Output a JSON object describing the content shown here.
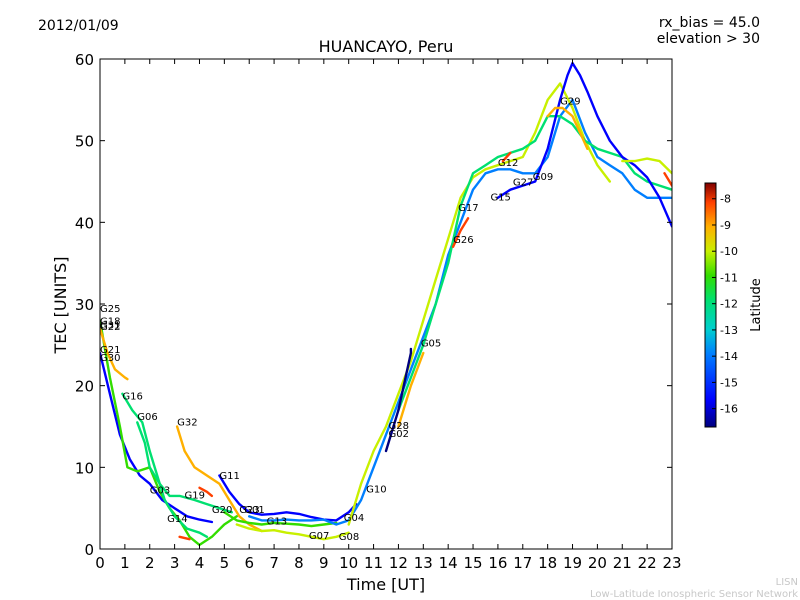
{
  "header": {
    "date": "2012/01/09",
    "rx_bias": "rx_bias = 45.0",
    "elevation": "elevation > 30"
  },
  "footer": {
    "line1": "LISN",
    "line2": "Low-Latitude Ionospheric Sensor Network"
  },
  "colors": {
    "ramp": [
      "#00007f",
      "#0000ff",
      "#007fff",
      "#00cfcf",
      "#00e070",
      "#33dd00",
      "#c8f000",
      "#ffb000",
      "#ff4000",
      "#cc0000"
    ]
  },
  "chart_data": {
    "type": "line",
    "title": "HUANCAYO, Peru",
    "xlabel": "Time [UT]",
    "ylabel": "TEC [UNITS]",
    "xlim": [
      0,
      23
    ],
    "ylim": [
      0,
      60
    ],
    "xticks": [
      0,
      1,
      2,
      3,
      4,
      5,
      6,
      7,
      8,
      9,
      10,
      11,
      12,
      13,
      14,
      15,
      16,
      17,
      18,
      19,
      20,
      21,
      22,
      23
    ],
    "yticks": [
      0,
      10,
      20,
      30,
      40,
      50,
      60
    ],
    "colorbar": {
      "label": "Latitude",
      "range": [
        -16.7,
        -7.4
      ],
      "ticks": [
        -16,
        -15,
        -14,
        -13,
        -12,
        -11,
        -10,
        -9,
        -8
      ]
    },
    "series": [
      {
        "lat": -15.5,
        "points": [
          [
            0,
            24
          ],
          [
            0.4,
            19
          ],
          [
            0.8,
            14
          ],
          [
            1.2,
            11
          ],
          [
            1.6,
            9
          ],
          [
            2.0,
            8
          ],
          [
            2.5,
            6
          ],
          [
            3.0,
            5
          ],
          [
            3.5,
            4
          ],
          [
            4.0,
            3.6
          ],
          [
            4.5,
            3.3
          ]
        ]
      },
      {
        "lat": -11.5,
        "points": [
          [
            0,
            28
          ],
          [
            0.4,
            21
          ],
          [
            0.8,
            15
          ],
          [
            1.1,
            10
          ],
          [
            1.5,
            9.5
          ],
          [
            2.0,
            10
          ],
          [
            2.4,
            7
          ],
          [
            2.8,
            5
          ],
          [
            3.2,
            3.5
          ],
          [
            3.6,
            1.5
          ],
          [
            4.0,
            0.5
          ],
          [
            4.5,
            1.5
          ],
          [
            5.0,
            3
          ],
          [
            5.5,
            4
          ]
        ]
      },
      {
        "lat": -9.5,
        "points": [
          [
            0,
            27
          ],
          [
            0.3,
            24
          ],
          [
            0.6,
            22
          ],
          [
            1.0,
            21
          ],
          [
            1.1,
            20.8
          ]
        ]
      },
      {
        "lat": -13.0,
        "points": [
          [
            0.9,
            19
          ],
          [
            1.3,
            17
          ],
          [
            1.7,
            15.5
          ],
          [
            2.0,
            12
          ],
          [
            2.3,
            9
          ],
          [
            2.6,
            6
          ],
          [
            3.0,
            4
          ],
          [
            3.5,
            2.5
          ],
          [
            4.0,
            2
          ],
          [
            4.3,
            1.5
          ]
        ]
      },
      {
        "lat": -12.5,
        "points": [
          [
            1.5,
            15.5
          ],
          [
            1.8,
            13
          ],
          [
            2.0,
            10
          ],
          [
            2.4,
            8
          ],
          [
            2.8,
            6.5
          ],
          [
            3.2,
            6.5
          ],
          [
            3.8,
            6
          ],
          [
            4.3,
            5.5
          ],
          [
            4.8,
            5
          ],
          [
            5.3,
            4.5
          ]
        ]
      },
      {
        "lat": -9.0,
        "points": [
          [
            3.1,
            15
          ],
          [
            3.4,
            12
          ],
          [
            3.8,
            10
          ],
          [
            4.3,
            9
          ],
          [
            4.8,
            8
          ],
          [
            5.2,
            6
          ],
          [
            5.6,
            4
          ],
          [
            6.0,
            3
          ],
          [
            6.5,
            2.2
          ]
        ]
      },
      {
        "lat": -16.0,
        "points": [
          [
            4.8,
            9
          ],
          [
            5.2,
            7
          ],
          [
            5.6,
            5.5
          ],
          [
            6.0,
            4.5
          ],
          [
            6.5,
            4.2
          ],
          [
            7.0,
            4.3
          ],
          [
            7.5,
            4.5
          ],
          [
            8.0,
            4.3
          ],
          [
            8.5,
            3.9
          ],
          [
            9.0,
            3.6
          ],
          [
            9.5,
            3.5
          ],
          [
            10.0,
            4.5
          ],
          [
            10.3,
            5.5
          ]
        ]
      },
      {
        "lat": -12.0,
        "points": [
          [
            5.0,
            4.5
          ],
          [
            5.5,
            3.5
          ],
          [
            6.0,
            3.2
          ],
          [
            6.5,
            3.0
          ],
          [
            7.0,
            3.2
          ],
          [
            7.5,
            3.1
          ],
          [
            8.0,
            3.0
          ],
          [
            8.5,
            2.8
          ],
          [
            9.0,
            3.0
          ],
          [
            9.5,
            3.2
          ]
        ]
      },
      {
        "lat": -10.5,
        "points": [
          [
            5.5,
            3.0
          ],
          [
            6.0,
            2.5
          ],
          [
            6.5,
            2.2
          ],
          [
            7.0,
            2.3
          ],
          [
            7.5,
            2.0
          ],
          [
            8.0,
            1.8
          ],
          [
            8.5,
            1.5
          ],
          [
            9.0,
            1.2
          ],
          [
            9.5,
            1.5
          ],
          [
            10.0,
            2.0
          ]
        ]
      },
      {
        "lat": -15.0,
        "points": [
          [
            6.0,
            4.0
          ],
          [
            6.5,
            3.5
          ],
          [
            7.0,
            3.5
          ],
          [
            7.5,
            3.6
          ],
          [
            8.0,
            3.5
          ],
          [
            8.5,
            3.5
          ],
          [
            9.0,
            3.6
          ],
          [
            9.5,
            3.0
          ],
          [
            10.0,
            3.5
          ],
          [
            10.5,
            6
          ],
          [
            11.0,
            10
          ],
          [
            11.5,
            14
          ],
          [
            12.0,
            18
          ],
          [
            12.5,
            22
          ],
          [
            13.0,
            26
          ],
          [
            13.5,
            30
          ],
          [
            14.0,
            36
          ],
          [
            14.5,
            40
          ],
          [
            15.0,
            44
          ],
          [
            15.5,
            46
          ],
          [
            16.0,
            46.5
          ],
          [
            16.5,
            46.5
          ],
          [
            17.0,
            46
          ],
          [
            17.5,
            46
          ],
          [
            18.0,
            48
          ],
          [
            18.5,
            53
          ],
          [
            19.0,
            55
          ],
          [
            19.5,
            51
          ],
          [
            20.0,
            48
          ],
          [
            20.5,
            47
          ],
          [
            21.0,
            46
          ],
          [
            21.5,
            44
          ],
          [
            22.0,
            43
          ],
          [
            22.5,
            43
          ],
          [
            23.0,
            43
          ]
        ]
      },
      {
        "lat": -11.0,
        "points": [
          [
            10.0,
            3.0
          ],
          [
            10.5,
            8
          ],
          [
            11.0,
            12
          ],
          [
            11.5,
            15
          ],
          [
            12.0,
            19
          ],
          [
            12.5,
            23
          ],
          [
            13.0,
            28
          ],
          [
            13.5,
            33
          ],
          [
            14.0,
            38
          ],
          [
            14.5,
            43
          ],
          [
            15.0,
            45.5
          ],
          [
            15.5,
            46.5
          ],
          [
            16.0,
            47
          ],
          [
            16.5,
            47.5
          ],
          [
            17.0,
            48
          ],
          [
            17.5,
            51
          ],
          [
            18.0,
            55
          ],
          [
            18.5,
            57
          ],
          [
            19.0,
            54
          ],
          [
            19.5,
            50
          ],
          [
            20.0,
            47
          ],
          [
            20.5,
            45
          ]
        ]
      },
      {
        "lat": -13.0,
        "points": [
          [
            12.0,
            17
          ],
          [
            12.5,
            21
          ],
          [
            13.0,
            25
          ],
          [
            13.5,
            30
          ],
          [
            14.0,
            35
          ],
          [
            14.5,
            42
          ],
          [
            15.0,
            46
          ],
          [
            15.5,
            47
          ],
          [
            16.0,
            48
          ],
          [
            16.5,
            48.5
          ],
          [
            17.0,
            49
          ],
          [
            17.5,
            50
          ],
          [
            18.0,
            53
          ],
          [
            18.5,
            53
          ],
          [
            19.0,
            52
          ],
          [
            19.5,
            50
          ],
          [
            20.0,
            49
          ],
          [
            20.5,
            48.5
          ],
          [
            21.0,
            48
          ],
          [
            21.5,
            46
          ],
          [
            22.0,
            45
          ],
          [
            22.5,
            44.5
          ],
          [
            23.0,
            44
          ]
        ]
      },
      {
        "lat": -16.5,
        "points": [
          [
            11.5,
            12
          ],
          [
            12.0,
            17
          ],
          [
            12.5,
            24
          ],
          [
            12.5,
            24.5
          ]
        ]
      },
      {
        "lat": -9.5,
        "points": [
          [
            12.0,
            15
          ],
          [
            12.5,
            20
          ],
          [
            13.0,
            24
          ]
        ]
      },
      {
        "lat": -15.8,
        "points": [
          [
            16.0,
            43
          ],
          [
            16.5,
            44
          ],
          [
            17.0,
            44.5
          ],
          [
            17.5,
            45
          ],
          [
            18.0,
            49
          ],
          [
            18.5,
            55
          ],
          [
            18.8,
            58
          ],
          [
            19.0,
            59.5
          ],
          [
            19.3,
            58
          ],
          [
            19.6,
            56
          ],
          [
            20.0,
            53
          ],
          [
            20.5,
            50
          ],
          [
            21.0,
            48
          ],
          [
            21.5,
            47
          ],
          [
            22.0,
            45.5
          ],
          [
            22.5,
            43
          ],
          [
            23.0,
            39.5
          ]
        ]
      },
      {
        "lat": -9.0,
        "points": [
          [
            18.0,
            53
          ],
          [
            18.3,
            54
          ],
          [
            18.6,
            54
          ],
          [
            19.0,
            53
          ],
          [
            19.3,
            51
          ],
          [
            19.6,
            49
          ]
        ]
      },
      {
        "lat": -11.0,
        "points": [
          [
            21.0,
            47.5
          ],
          [
            21.5,
            47.5
          ],
          [
            22.0,
            47.8
          ],
          [
            22.5,
            47.5
          ],
          [
            23.0,
            46
          ]
        ]
      },
      {
        "lat": -8.0,
        "points": [
          [
            14.2,
            37
          ],
          [
            14.5,
            39
          ],
          [
            14.8,
            40.5
          ]
        ]
      },
      {
        "lat": -8.0,
        "points": [
          [
            16.2,
            47.5
          ],
          [
            16.5,
            48.5
          ]
        ]
      },
      {
        "lat": -8.5,
        "points": [
          [
            22.7,
            46
          ],
          [
            23.0,
            44.5
          ]
        ]
      },
      {
        "lat": -8.0,
        "points": [
          [
            4.0,
            7.5
          ],
          [
            4.3,
            7.0
          ],
          [
            4.5,
            6.5
          ]
        ]
      },
      {
        "lat": -8.0,
        "points": [
          [
            3.2,
            1.5
          ],
          [
            3.6,
            1.2
          ]
        ]
      }
    ],
    "annotations": [
      {
        "text": "G25",
        "x": 0,
        "y": 29
      },
      {
        "text": "G18",
        "x": 0,
        "y": 27.5
      },
      {
        "text": "G31",
        "x": 0,
        "y": 27
      },
      {
        "text": "G22",
        "x": 0,
        "y": 26.8
      },
      {
        "text": "G21",
        "x": 0,
        "y": 24
      },
      {
        "text": "G30",
        "x": 0,
        "y": 23
      },
      {
        "text": "G16",
        "x": 0.9,
        "y": 18.3
      },
      {
        "text": "G06",
        "x": 1.5,
        "y": 15.8
      },
      {
        "text": "G32",
        "x": 3.1,
        "y": 15.1
      },
      {
        "text": "G11",
        "x": 4.8,
        "y": 8.6
      },
      {
        "text": "G03",
        "x": 2.0,
        "y": 6.8
      },
      {
        "text": "G19",
        "x": 3.4,
        "y": 6.2
      },
      {
        "text": "G14",
        "x": 2.7,
        "y": 3.3
      },
      {
        "text": "G20",
        "x": 4.5,
        "y": 4.4
      },
      {
        "text": "G23",
        "x": 5.6,
        "y": 4.4
      },
      {
        "text": "G01",
        "x": 5.8,
        "y": 4.4
      },
      {
        "text": "G13",
        "x": 6.7,
        "y": 3.0
      },
      {
        "text": "G07",
        "x": 8.4,
        "y": 1.2
      },
      {
        "text": "G08",
        "x": 9.6,
        "y": 1.1
      },
      {
        "text": "G04",
        "x": 9.8,
        "y": 3.4
      },
      {
        "text": "G10",
        "x": 10.7,
        "y": 6.9
      },
      {
        "text": "G28",
        "x": 11.6,
        "y": 14.7
      },
      {
        "text": "G02",
        "x": 11.6,
        "y": 13.7
      },
      {
        "text": "G05",
        "x": 12.9,
        "y": 24.8
      },
      {
        "text": "G26",
        "x": 14.2,
        "y": 37.5
      },
      {
        "text": "G17",
        "x": 14.4,
        "y": 41.4
      },
      {
        "text": "G15",
        "x": 15.7,
        "y": 42.7
      },
      {
        "text": "G12",
        "x": 16.0,
        "y": 46.9
      },
      {
        "text": "G27",
        "x": 16.6,
        "y": 44.5
      },
      {
        "text": "G09",
        "x": 17.4,
        "y": 45.2
      },
      {
        "text": "G29",
        "x": 18.5,
        "y": 54.4
      }
    ]
  }
}
